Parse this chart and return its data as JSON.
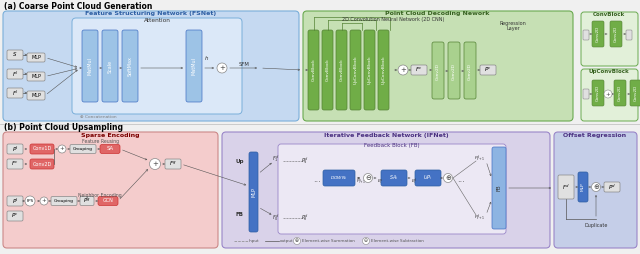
{
  "fig_width": 6.4,
  "fig_height": 2.54,
  "bg_color": "#f0f0f0",
  "section_a_title": "(a) Coarse Point Cloud Generation",
  "section_b_title": "(b) Point Cloud Upsampling",
  "fsnet_title": "Feature Structuring Network (FSNet)",
  "attention_title": "Attention",
  "decoding_title": "Point Cloud Decoding Nework",
  "cnn_subtitle": "2D Convolution Neural Network (2D CNN)",
  "regression_title": "Regression\nLayer",
  "convblock_title": "ConvBlock",
  "upconvblock_title": "UpConvBlock",
  "sparse_title": "Sparse Encoding",
  "ifnet_title": "Iterative Feedback Network (IFNet)",
  "feedback_title": "Feedback Block (FB)",
  "offset_title": "Offset Regression",
  "feature_reuse": "Feature Reusing",
  "neighbor_enc": "Neighbor Encoding",
  "concatenation": "Concatenation",
  "blue_bg": "#c5d9f1",
  "blue_bg2": "#dbe8f8",
  "green_bg": "#c6e0b4",
  "green_bg2": "#e2f0d9",
  "red_bg": "#f4cccc",
  "purple_bg": "#d9d2e9",
  "purple_bg2": "#ece8f4",
  "purple_bg3": "#b8aed4",
  "light_blue_box": "#9dc3e6",
  "light_green_box": "#70ad47",
  "green_box": "#548235",
  "blue_box": "#4472c4",
  "blue_box2": "#8db4e2",
  "pink_box": "#e06666",
  "white_box": "#e0e0e0",
  "dark_blue_box": "#2e5fa3"
}
